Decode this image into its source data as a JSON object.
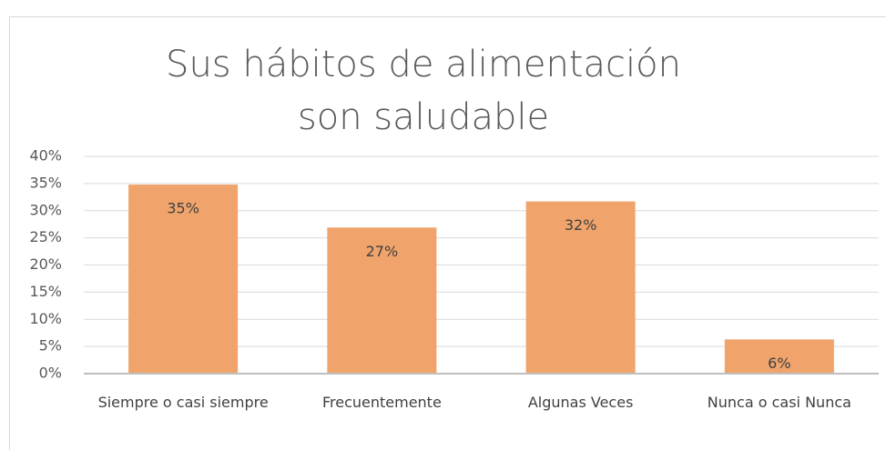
{
  "chart_data": {
    "type": "bar",
    "title": "Sus hábitos de alimentación son saludable",
    "categories": [
      "Siempre o casi siempre",
      "Frecuentemente",
      "Algunas Veces",
      "Nunca o casi Nunca"
    ],
    "values": [
      34.8,
      26.9,
      31.7,
      6.3
    ],
    "value_labels": [
      "35%",
      "27%",
      "32%",
      "6%"
    ],
    "color": "#f0a46c",
    "ylim": [
      0,
      40
    ],
    "yticks": [
      {
        "value": 0,
        "label": "0%"
      },
      {
        "value": 5,
        "label": "5%"
      },
      {
        "value": 10,
        "label": "10%"
      },
      {
        "value": 15,
        "label": "15%"
      },
      {
        "value": 20,
        "label": "20%"
      },
      {
        "value": 25,
        "label": "25%"
      },
      {
        "value": 30,
        "label": "30%"
      },
      {
        "value": 35,
        "label": "35%"
      },
      {
        "value": 40,
        "label": "40%"
      }
    ],
    "grid": true
  }
}
